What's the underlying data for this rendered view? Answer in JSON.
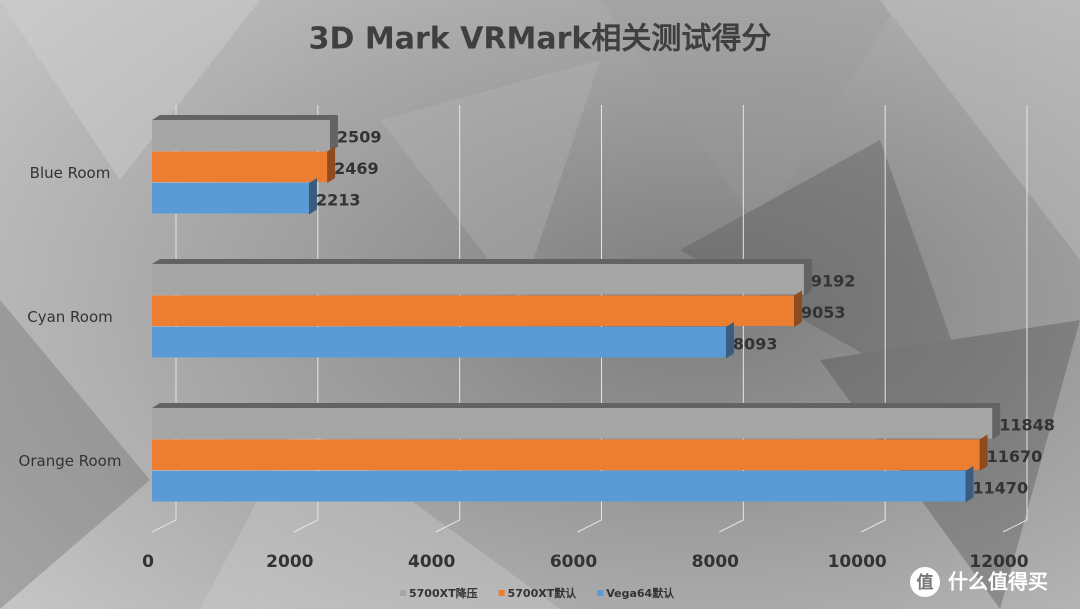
{
  "chart_data": {
    "type": "hbar3d",
    "title": "3D Mark VRMark相关测试得分",
    "categories": [
      "Blue Room",
      "Cyan Room",
      "Orange Room"
    ],
    "series": [
      {
        "name": "5700XT降压",
        "color": "#a5a5a5",
        "values": [
          2509,
          9192,
          11848
        ]
      },
      {
        "name": "5700XT默认",
        "color": "#ed7d31",
        "values": [
          2469,
          9053,
          11670
        ]
      },
      {
        "name": "Vega64默认",
        "color": "#5b9bd5",
        "values": [
          2213,
          8093,
          11470
        ]
      }
    ],
    "xlim": [
      0,
      12000
    ],
    "xticks": [
      0,
      2000,
      4000,
      6000,
      8000,
      10000,
      12000
    ],
    "grid": true,
    "legend": "bottom"
  },
  "watermark": {
    "icon": "值",
    "text": "什么值得买"
  }
}
